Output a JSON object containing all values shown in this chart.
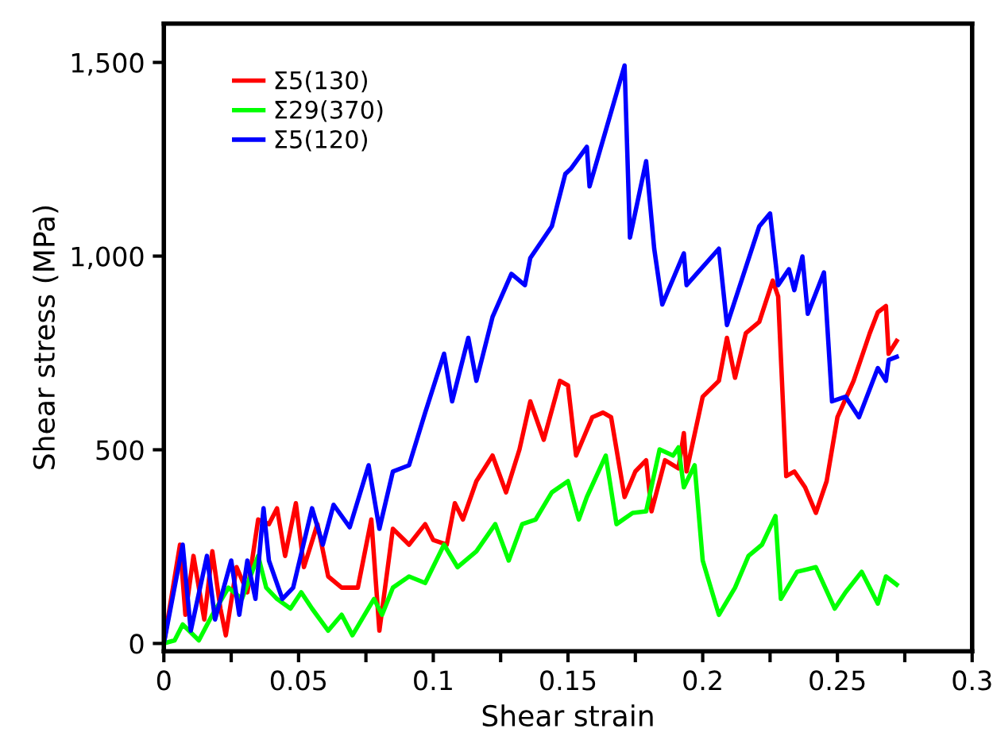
{
  "chart_data": {
    "type": "line",
    "xlabel": "Shear strain",
    "ylabel": "Shear stress (MPa)",
    "xlim": [
      0,
      0.3
    ],
    "ylim": [
      -20,
      1600
    ],
    "xticks": [
      0,
      {
        "value": 0.025,
        "label": null
      },
      0.05,
      {
        "value": 0.075,
        "label": null
      },
      0.1,
      {
        "value": 0.125,
        "label": null
      },
      0.15,
      {
        "value": 0.175,
        "label": null
      },
      0.2,
      {
        "value": 0.225,
        "label": null
      },
      0.25,
      {
        "value": 0.275,
        "label": null
      },
      0.3
    ],
    "yticks": [
      0,
      500,
      {
        "value": 1000,
        "label": "1,000"
      },
      {
        "value": 1500,
        "label": "1,500"
      }
    ],
    "legend": "top left",
    "grid": false,
    "marker": "none",
    "line_style": "solid",
    "series": [
      {
        "name": "Σ5(130)",
        "color": "#ff0000",
        "x": [
          0,
          0.006,
          0.008,
          0.011,
          0.015,
          0.018,
          0.021,
          0.023,
          0.027,
          0.031,
          0.035,
          0.039,
          0.042,
          0.045,
          0.049,
          0.052,
          0.057,
          0.061,
          0.066,
          0.072,
          0.077,
          0.08,
          0.085,
          0.091,
          0.097,
          0.1,
          0.105,
          0.108,
          0.111,
          0.116,
          0.122,
          0.127,
          0.132,
          0.136,
          0.141,
          0.147,
          0.15,
          0.153,
          0.159,
          0.163,
          0.166,
          0.171,
          0.175,
          0.179,
          0.181,
          0.186,
          0.191,
          0.193,
          0.194,
          0.2,
          0.206,
          0.209,
          0.212,
          0.216,
          0.221,
          0.226,
          0.228,
          0.231,
          0.234,
          0.238,
          0.242,
          0.246,
          0.25,
          0.256,
          0.262,
          0.265,
          0.268,
          0.269,
          0.272
        ],
        "values": [
          0,
          255,
          74,
          226,
          62,
          238,
          90,
          21,
          197,
          132,
          320,
          308,
          349,
          226,
          362,
          197,
          308,
          173,
          144,
          144,
          320,
          33,
          296,
          255,
          308,
          267,
          255,
          362,
          320,
          419,
          485,
          390,
          501,
          625,
          526,
          678,
          666,
          485,
          584,
          596,
          584,
          378,
          444,
          473,
          341,
          473,
          452,
          543,
          444,
          637,
          678,
          789,
          686,
          801,
          830,
          937,
          896,
          432,
          444,
          403,
          337,
          419,
          584,
          678,
          801,
          855,
          871,
          748,
          781
        ]
      },
      {
        "name": "Σ29(370)",
        "color": "#00ff00",
        "x": [
          0,
          0.004,
          0.007,
          0.013,
          0.018,
          0.024,
          0.029,
          0.035,
          0.038,
          0.042,
          0.047,
          0.051,
          0.055,
          0.061,
          0.066,
          0.07,
          0.078,
          0.081,
          0.085,
          0.091,
          0.097,
          0.104,
          0.109,
          0.116,
          0.123,
          0.128,
          0.133,
          0.138,
          0.144,
          0.15,
          0.154,
          0.157,
          0.164,
          0.168,
          0.174,
          0.179,
          0.184,
          0.189,
          0.191,
          0.193,
          0.197,
          0.2,
          0.206,
          0.212,
          0.217,
          0.222,
          0.227,
          0.229,
          0.235,
          0.242,
          0.249,
          0.253,
          0.259,
          0.265,
          0.268,
          0.272
        ],
        "values": [
          0,
          8,
          49,
          8,
          74,
          144,
          115,
          226,
          144,
          115,
          90,
          132,
          90,
          33,
          74,
          21,
          115,
          74,
          144,
          173,
          156,
          255,
          197,
          238,
          308,
          214,
          308,
          320,
          390,
          419,
          320,
          378,
          485,
          308,
          337,
          341,
          501,
          485,
          506,
          403,
          460,
          214,
          74,
          144,
          226,
          255,
          329,
          115,
          185,
          197,
          90,
          132,
          185,
          103,
          173,
          152
        ]
      },
      {
        "name": "Σ5(120)",
        "color": "#0000ff",
        "x": [
          0,
          0.007,
          0.01,
          0.016,
          0.019,
          0.025,
          0.028,
          0.031,
          0.034,
          0.037,
          0.039,
          0.044,
          0.048,
          0.055,
          0.059,
          0.063,
          0.069,
          0.076,
          0.08,
          0.085,
          0.091,
          0.097,
          0.104,
          0.107,
          0.113,
          0.116,
          0.122,
          0.129,
          0.134,
          0.136,
          0.144,
          0.149,
          0.151,
          0.157,
          0.158,
          0.171,
          0.173,
          0.179,
          0.182,
          0.185,
          0.193,
          0.194,
          0.206,
          0.209,
          0.221,
          0.225,
          0.228,
          0.232,
          0.234,
          0.237,
          0.239,
          0.245,
          0.248,
          0.253,
          0.258,
          0.265,
          0.268,
          0.269,
          0.272
        ],
        "values": [
          0,
          255,
          33,
          226,
          62,
          214,
          74,
          214,
          115,
          349,
          214,
          115,
          144,
          349,
          255,
          358,
          300,
          460,
          296,
          444,
          460,
          596,
          748,
          625,
          789,
          678,
          843,
          954,
          925,
          995,
          1077,
          1212,
          1225,
          1282,
          1180,
          1492,
          1048,
          1245,
          1019,
          875,
          1007,
          925,
          1019,
          822,
          1077,
          1110,
          925,
          966,
          912,
          999,
          851,
          958,
          625,
          637,
          584,
          711,
          678,
          732,
          740
        ]
      }
    ]
  }
}
